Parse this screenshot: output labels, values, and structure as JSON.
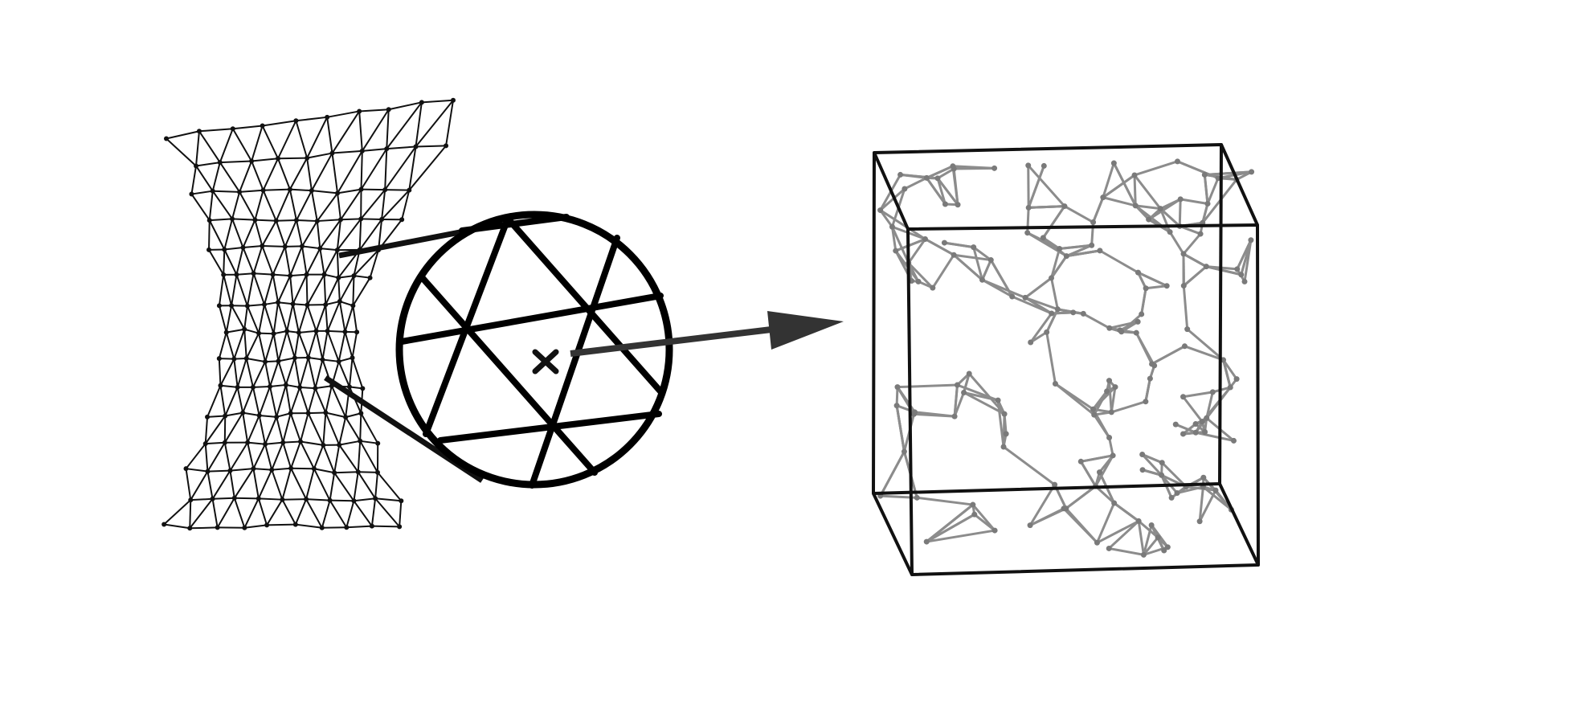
{
  "diagram": {
    "panels": [
      {
        "id": "mesh",
        "shape": "triangulated-mesh",
        "stroke": "#111111"
      },
      {
        "id": "zoom-circle",
        "shape": "magnified-mesh-element",
        "stroke": "#000000",
        "center_marker": "cross"
      },
      {
        "id": "network-cube",
        "shape": "random-fiber-network-in-cube",
        "frame_stroke": "#111111",
        "fiber_stroke": "#8c8c8c"
      }
    ],
    "connector": {
      "from": "zoom-circle",
      "to": "network-cube",
      "kind": "arrow",
      "color": "#333333"
    }
  }
}
